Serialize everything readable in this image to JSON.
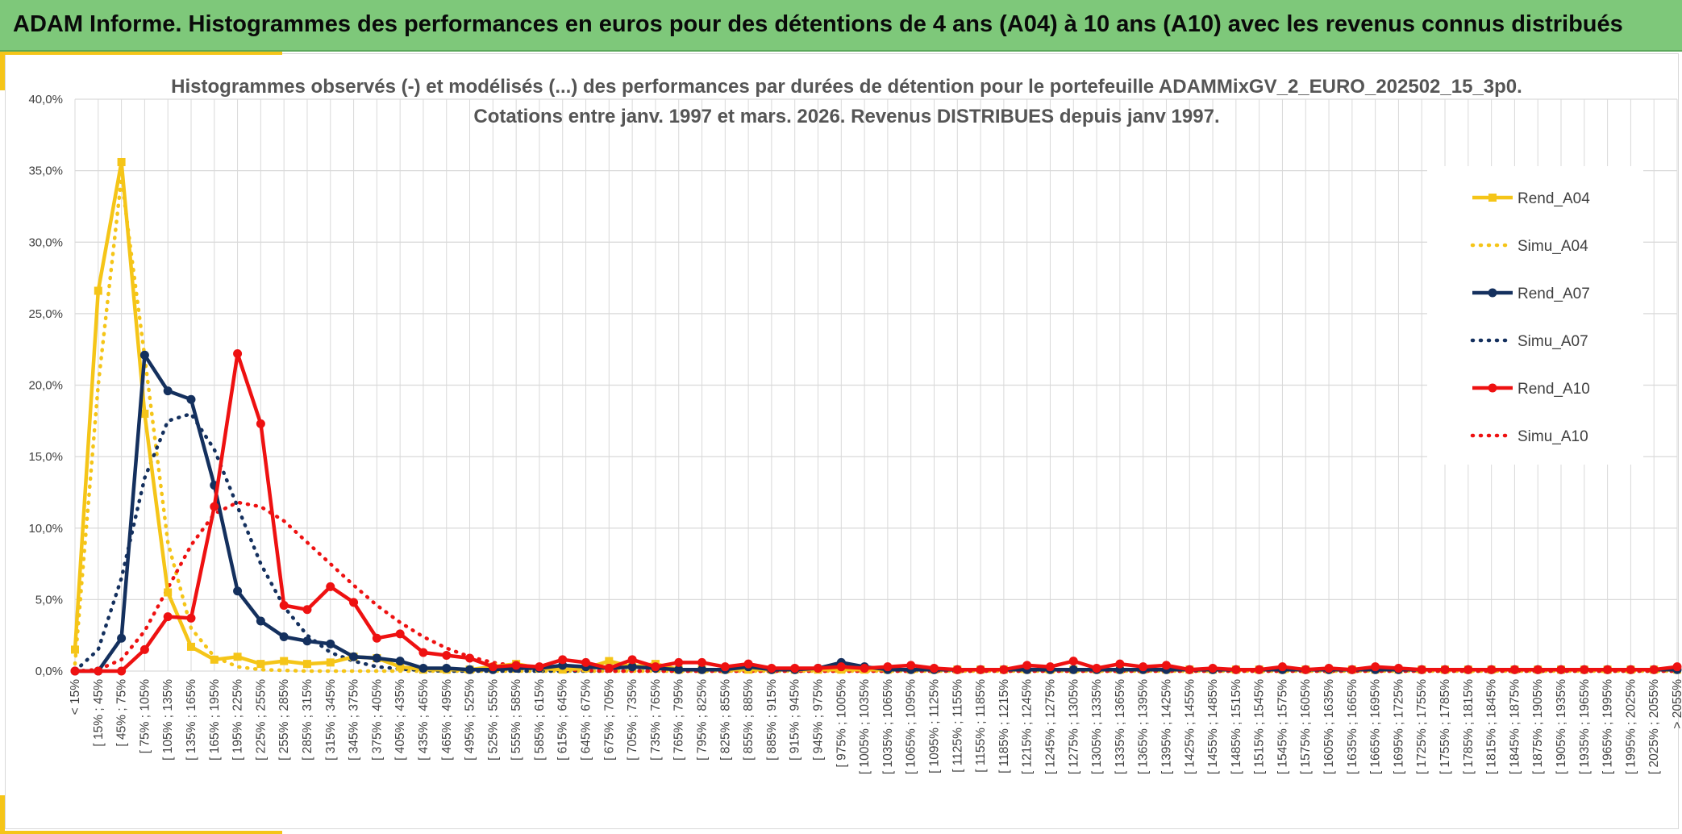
{
  "page": {
    "title": "ADAM Informe. Histogrammes des performances en euros pour des détentions de 4 ans (A04) à 10 ans (A10) avec les revenus connus distribués"
  },
  "colors": {
    "header_bg": "#7ec87a",
    "accent": "#f5c518",
    "A04": "#f5c518",
    "A07": "#14305e",
    "A10": "#ee1111",
    "grid": "#d9d9d9"
  },
  "chart_data": {
    "type": "line",
    "title": [
      "Histogrammes observés (-) et modélisés (...) des performances par durées de détention pour le portefeuille ADAMMixGV_2_EURO_202502_15_3p0.",
      "Cotations entre janv. 1997 et mars. 2026. Revenus DISTRIBUES depuis janv 1997."
    ],
    "xlabel": "",
    "ylabel": "",
    "ylim": [
      0,
      40
    ],
    "yticks": [
      "0,0%",
      "5,0%",
      "10,0%",
      "15,0%",
      "20,0%",
      "25,0%",
      "30,0%",
      "35,0%",
      "40,0%"
    ],
    "grid": true,
    "legend_position": "right",
    "categories": [
      "< 15%",
      "[ 15% ; 45%",
      "[ 45% ; 75%",
      "[ 75% ; 105%",
      "[ 105% ; 135%",
      "[ 135% ; 165%",
      "[ 165% ; 195%",
      "[ 195% ; 225%",
      "[ 225% ; 255%",
      "[ 255% ; 285%",
      "[ 285% ; 315%",
      "[ 315% ; 345%",
      "[ 345% ; 375%",
      "[ 375% ; 405%",
      "[ 405% ; 435%",
      "[ 435% ; 465%",
      "[ 465% ; 495%",
      "[ 495% ; 525%",
      "[ 525% ; 555%",
      "[ 555% ; 585%",
      "[ 585% ; 615%",
      "[ 615% ; 645%",
      "[ 645% ; 675%",
      "[ 675% ; 705%",
      "[ 705% ; 735%",
      "[ 735% ; 765%",
      "[ 765% ; 795%",
      "[ 795% ; 825%",
      "[ 825% ; 855%",
      "[ 855% ; 885%",
      "[ 885% ; 915%",
      "[ 915% ; 945%",
      "[ 945% ; 975%",
      "[ 975% ; 1005%",
      "[ 1005% ; 1035%",
      "[ 1035% ; 1065%",
      "[ 1065% ; 1095%",
      "[ 1095% ; 1125%",
      "[ 1125% ; 1155%",
      "[ 1155% ; 1185%",
      "[ 1185% ; 1215%",
      "[ 1215% ; 1245%",
      "[ 1245% ; 1275%",
      "[ 1275% ; 1305%",
      "[ 1305% ; 1335%",
      "[ 1335% ; 1365%",
      "[ 1365% ; 1395%",
      "[ 1395% ; 1425%",
      "[ 1425% ; 1455%",
      "[ 1455% ; 1485%",
      "[ 1485% ; 1515%",
      "[ 1515% ; 1545%",
      "[ 1545% ; 1575%",
      "[ 1575% ; 1605%",
      "[ 1605% ; 1635%",
      "[ 1635% ; 1665%",
      "[ 1665% ; 1695%",
      "[ 1695% ; 1725%",
      "[ 1725% ; 1755%",
      "[ 1755% ; 1785%",
      "[ 1785% ; 1815%",
      "[ 1815% ; 1845%",
      "[ 1845% ; 1875%",
      "[ 1875% ; 1905%",
      "[ 1905% ; 1935%",
      "[ 1935% ; 1965%",
      "[ 1965% ; 1995%",
      "[ 1995% ; 2025%",
      "[ 2025% ; 2055%",
      "> 2055%"
    ],
    "series": [
      {
        "name": "Rend_A04",
        "style": "solid",
        "marker": "square",
        "color": "#f5c518",
        "values": [
          1.5,
          26.6,
          35.6,
          18.0,
          5.5,
          1.7,
          0.8,
          1.0,
          0.5,
          0.7,
          0.5,
          0.6,
          1.0,
          0.9,
          0.3,
          0.1,
          0.1,
          0.1,
          0.3,
          0.5,
          0.2,
          0.1,
          0.2,
          0.7,
          0.3,
          0.5,
          0.1,
          0.1,
          0.1,
          0.1,
          0.1,
          0.1,
          0.1,
          0.1,
          0.1,
          0.1,
          0.1,
          0.1,
          0.1,
          0.1,
          0.1,
          0.1,
          0.1,
          0.1,
          0.1,
          0.1,
          0.1,
          0.1,
          0.1,
          0.1,
          0.1,
          0.1,
          0.1,
          0.1,
          0.1,
          0.1,
          0.1,
          0.1,
          0.1,
          0.1,
          0.1,
          0.1,
          0.1,
          0.1,
          0.1,
          0.1,
          0.1,
          0.1,
          0.1,
          0.1
        ]
      },
      {
        "name": "Simu_A04",
        "style": "dotted",
        "marker": "none",
        "color": "#f5c518",
        "values": [
          0.5,
          20.0,
          34.5,
          22.0,
          9.0,
          3.0,
          1.0,
          0.3,
          0.1,
          0.05,
          0.0,
          0.0,
          0.0,
          0.0,
          0.0,
          0.0,
          0.0,
          0.0,
          0.0,
          0.0,
          0.0,
          0.0,
          0.0,
          0.0,
          0.0,
          0.0,
          0.0,
          0.0,
          0.0,
          0.0,
          0.0,
          0.0,
          0.0,
          0.0,
          0.0,
          0.0,
          0.0,
          0.0,
          0.0,
          0.0,
          0.0,
          0.0,
          0.0,
          0.0,
          0.0,
          0.0,
          0.0,
          0.0,
          0.0,
          0.0,
          0.0,
          0.0,
          0.0,
          0.0,
          0.0,
          0.0,
          0.0,
          0.0,
          0.0,
          0.0,
          0.0,
          0.0,
          0.0,
          0.0,
          0.0,
          0.0,
          0.0,
          0.0,
          0.0,
          0.0
        ]
      },
      {
        "name": "Rend_A07",
        "style": "solid",
        "marker": "circle",
        "color": "#14305e",
        "values": [
          0.0,
          0.0,
          2.3,
          22.1,
          19.6,
          19.0,
          13.0,
          5.6,
          3.5,
          2.4,
          2.1,
          1.9,
          1.0,
          0.9,
          0.7,
          0.2,
          0.2,
          0.1,
          0.1,
          0.2,
          0.2,
          0.4,
          0.3,
          0.2,
          0.3,
          0.2,
          0.1,
          0.1,
          0.1,
          0.3,
          0.1,
          0.1,
          0.2,
          0.6,
          0.3,
          0.1,
          0.1,
          0.1,
          0.1,
          0.1,
          0.1,
          0.1,
          0.1,
          0.1,
          0.1,
          0.1,
          0.1,
          0.1,
          0.1,
          0.1,
          0.1,
          0.1,
          0.1,
          0.1,
          0.1,
          0.1,
          0.1,
          0.1,
          0.1,
          0.1,
          0.1,
          0.1,
          0.1,
          0.1,
          0.1,
          0.1,
          0.1,
          0.1,
          0.1,
          0.1
        ]
      },
      {
        "name": "Simu_A07",
        "style": "dotted",
        "marker": "none",
        "color": "#14305e",
        "values": [
          0.0,
          1.5,
          6.5,
          13.5,
          17.5,
          18.0,
          15.5,
          11.5,
          7.5,
          4.5,
          2.5,
          1.3,
          0.7,
          0.3,
          0.15,
          0.05,
          0.0,
          0.0,
          0.0,
          0.0,
          0.0,
          0.0,
          0.0,
          0.0,
          0.0,
          0.0,
          0.0,
          0.0,
          0.0,
          0.0,
          0.0,
          0.0,
          0.0,
          0.0,
          0.0,
          0.0,
          0.0,
          0.0,
          0.0,
          0.0,
          0.0,
          0.0,
          0.0,
          0.0,
          0.0,
          0.0,
          0.0,
          0.0,
          0.0,
          0.0,
          0.0,
          0.0,
          0.0,
          0.0,
          0.0,
          0.0,
          0.0,
          0.0,
          0.0,
          0.0,
          0.0,
          0.0,
          0.0,
          0.0,
          0.0,
          0.0,
          0.0,
          0.0,
          0.0,
          0.0
        ]
      },
      {
        "name": "Rend_A10",
        "style": "solid",
        "marker": "circle",
        "color": "#ee1111",
        "values": [
          0.0,
          0.0,
          0.0,
          1.5,
          3.8,
          3.7,
          11.5,
          22.2,
          17.3,
          4.6,
          4.3,
          5.9,
          4.8,
          2.3,
          2.6,
          1.3,
          1.1,
          0.9,
          0.3,
          0.4,
          0.3,
          0.8,
          0.6,
          0.2,
          0.8,
          0.3,
          0.6,
          0.6,
          0.3,
          0.5,
          0.2,
          0.2,
          0.2,
          0.3,
          0.2,
          0.3,
          0.4,
          0.2,
          0.1,
          0.1,
          0.1,
          0.4,
          0.3,
          0.7,
          0.2,
          0.5,
          0.3,
          0.4,
          0.1,
          0.2,
          0.1,
          0.1,
          0.3,
          0.1,
          0.2,
          0.1,
          0.3,
          0.2,
          0.1,
          0.1,
          0.1,
          0.1,
          0.1,
          0.1,
          0.1,
          0.1,
          0.1,
          0.1,
          0.1,
          0.3
        ]
      },
      {
        "name": "Simu_A10",
        "style": "dotted",
        "marker": "none",
        "color": "#ee1111",
        "values": [
          0.0,
          0.1,
          0.8,
          2.8,
          5.8,
          8.8,
          11.0,
          11.8,
          11.5,
          10.5,
          9.0,
          7.5,
          6.0,
          4.6,
          3.4,
          2.4,
          1.6,
          1.0,
          0.6,
          0.35,
          0.2,
          0.1,
          0.05,
          0.0,
          0.0,
          0.0,
          0.0,
          0.0,
          0.0,
          0.0,
          0.0,
          0.0,
          0.0,
          0.0,
          0.0,
          0.0,
          0.0,
          0.0,
          0.0,
          0.0,
          0.0,
          0.0,
          0.0,
          0.0,
          0.0,
          0.0,
          0.0,
          0.0,
          0.0,
          0.0,
          0.0,
          0.0,
          0.0,
          0.0,
          0.0,
          0.0,
          0.0,
          0.0,
          0.0,
          0.0,
          0.0,
          0.0,
          0.0,
          0.0,
          0.0,
          0.0,
          0.0,
          0.0,
          0.0,
          0.0
        ]
      }
    ]
  }
}
